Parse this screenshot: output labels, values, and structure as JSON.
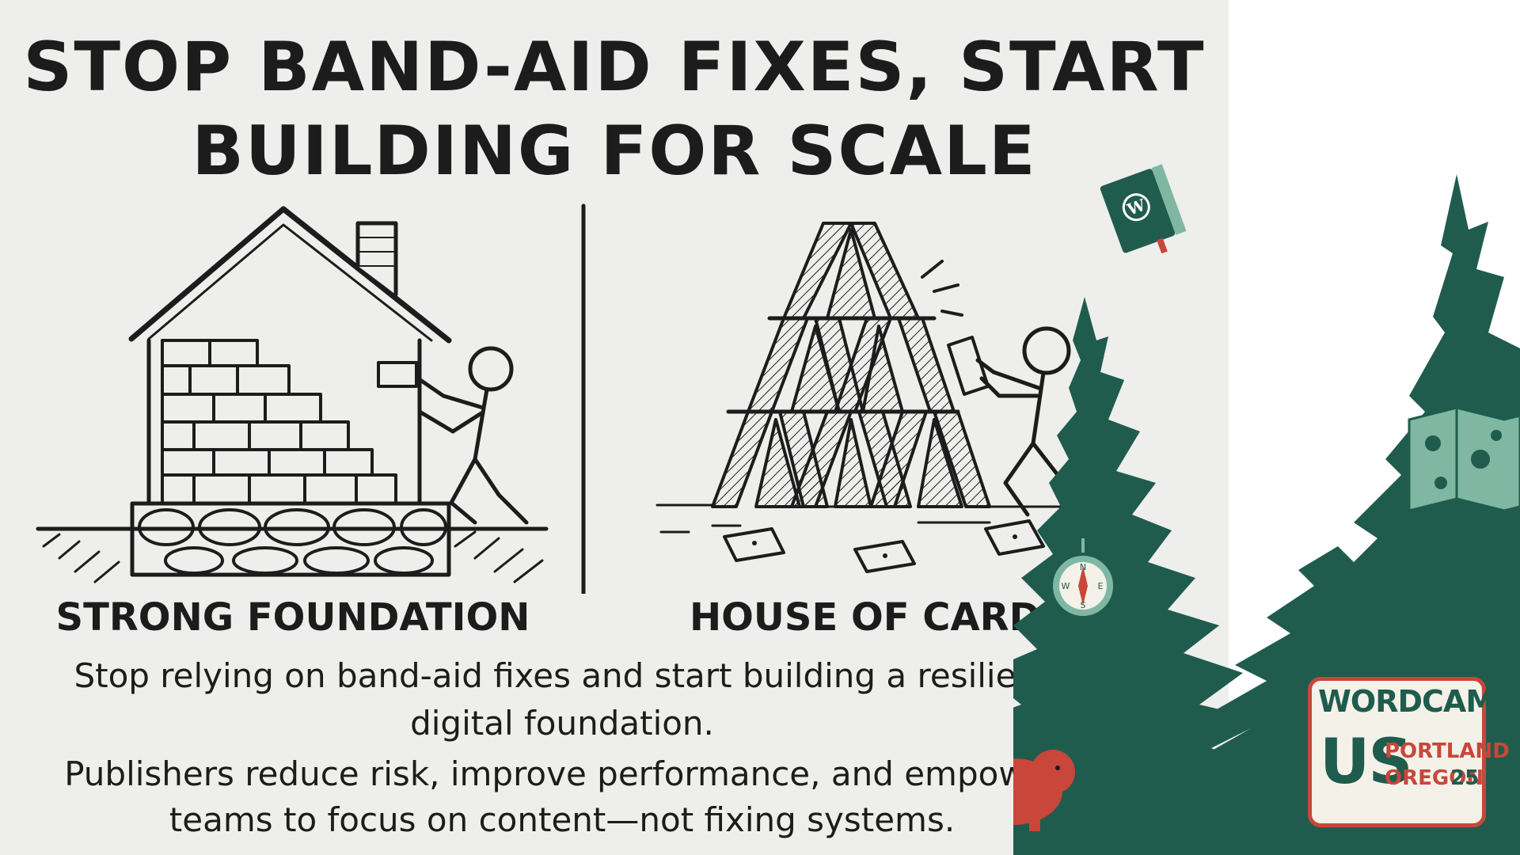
{
  "slide": {
    "title_line1": "STOP BAND-AID FIXES, START",
    "title_line2": "BUILDING FOR SCALE",
    "left_caption": "STRONG FOUNDATION",
    "right_caption": "HOUSE OF CARDS",
    "body_line1": "Stop relying on band-aid fixes and start building a resilient",
    "body_line2": "digital foundation.",
    "body_line3": "Publishers reduce risk, improve performance, and empower",
    "body_line4": "teams to focus on content—not fixing systems."
  },
  "branding": {
    "logo_word": "WORDCAMP",
    "logo_us": "US",
    "logo_city": "PORTLAND",
    "logo_state": "OREGON",
    "logo_year": "25",
    "compass_letters": [
      "N",
      "E",
      "S",
      "W"
    ]
  },
  "colors": {
    "panel_background": "#eeeeec",
    "ink": "#1c1c1c",
    "tree_green": "#1f5c4e",
    "accent_red": "#c8463a",
    "mint": "#7fb7a3"
  },
  "icons": [
    "house-illustration",
    "house-of-cards-illustration",
    "wordpress-book-icon",
    "compass-icon",
    "beaver-icon",
    "map-icon",
    "pine-tree-icon"
  ]
}
